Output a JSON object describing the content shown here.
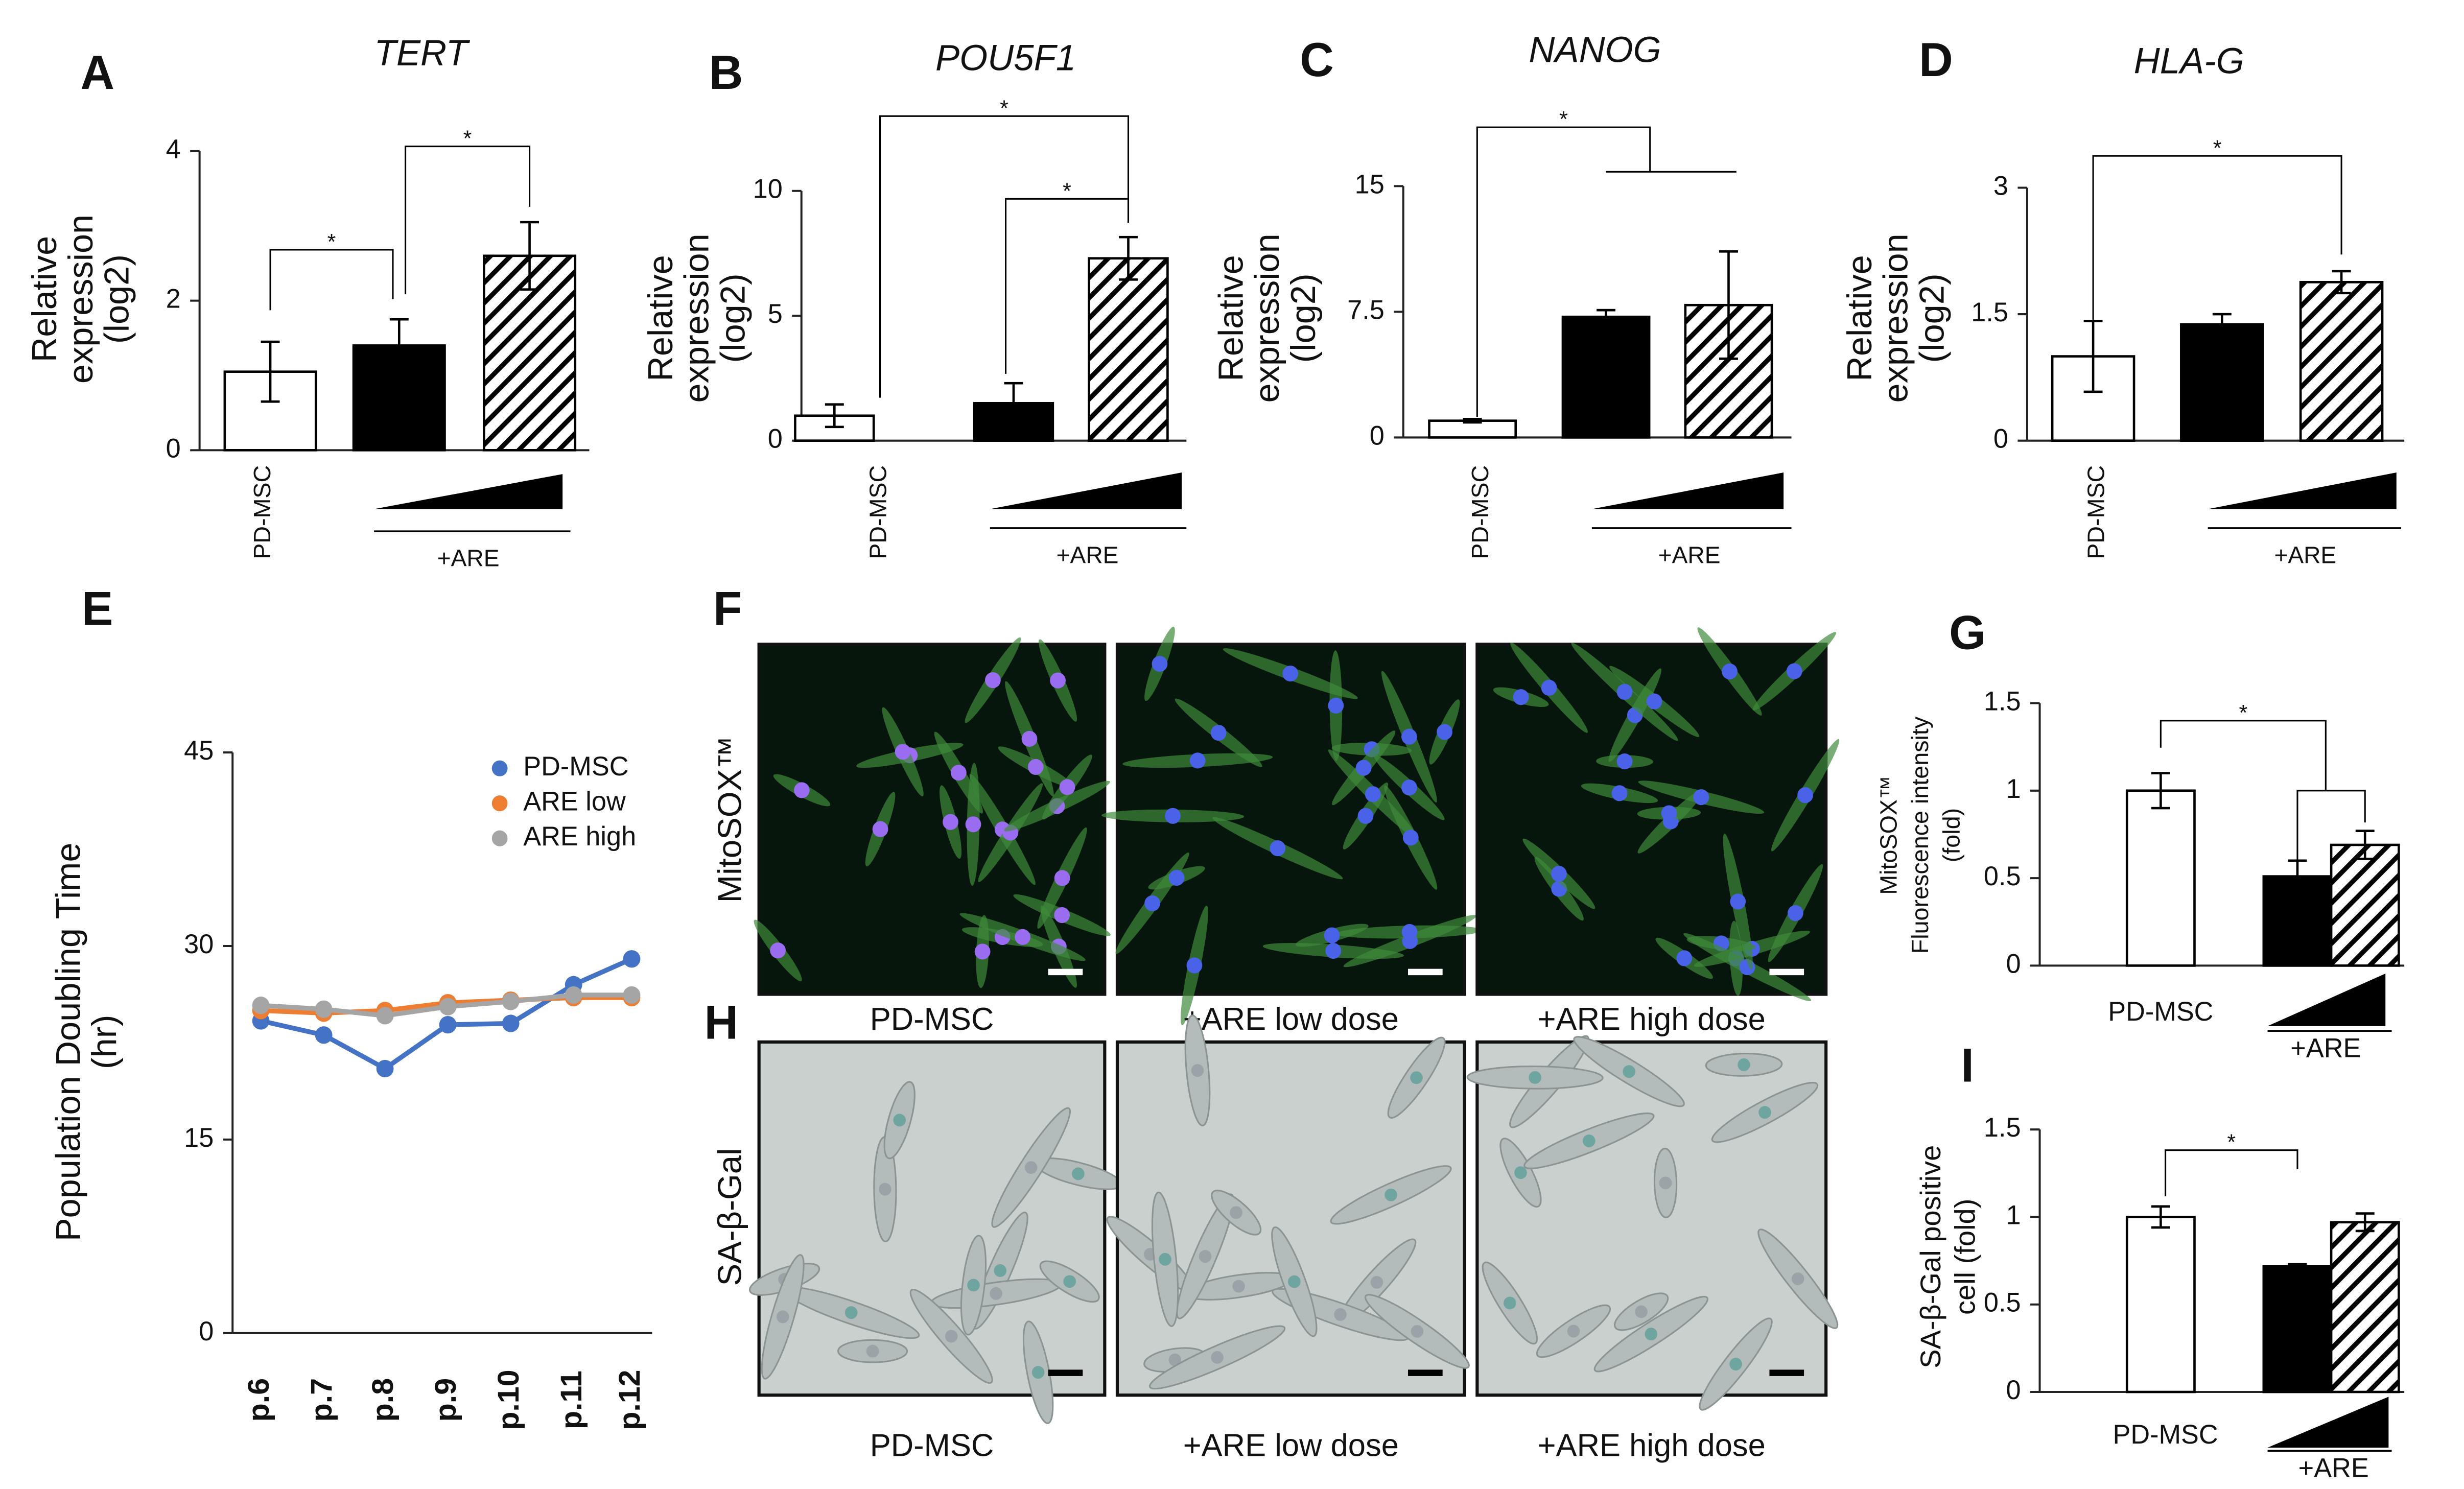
{
  "chart_data": [
    {
      "type": "bar",
      "panel": "A",
      "title": "TERT",
      "ylabel": [
        "Relative",
        "expression",
        "(log2)"
      ],
      "categories": [
        "PD-MSC",
        null,
        null
      ],
      "group_label": "+ARE",
      "values": [
        1.05,
        1.4,
        2.6
      ],
      "errors": [
        0.4,
        0.35,
        0.45
      ],
      "colors": [
        "#ffffff",
        "#000000",
        "#ffffff"
      ],
      "hatch": [
        false,
        false,
        true
      ],
      "ylim": [
        0,
        4
      ],
      "yticks": [
        0,
        2,
        4
      ],
      "annotations": [
        "*",
        "*"
      ]
    },
    {
      "type": "bar",
      "panel": "B",
      "title": "POU5F1",
      "ylabel": [
        "Relative",
        "expression",
        "(log2)"
      ],
      "categories": [
        "PD-MSC",
        null,
        null
      ],
      "group_label": "+ARE",
      "values": [
        1.0,
        1.5,
        7.3
      ],
      "errors": [
        0.45,
        0.8,
        0.85
      ],
      "colors": [
        "#ffffff",
        "#000000",
        "#ffffff"
      ],
      "hatch": [
        false,
        false,
        true
      ],
      "ylim": [
        0,
        10
      ],
      "yticks": [
        0,
        5,
        10
      ],
      "annotations": [
        "*",
        "*"
      ]
    },
    {
      "type": "bar",
      "panel": "C",
      "title": "NANOG",
      "ylabel": [
        "Relative",
        "expression",
        "(log2)"
      ],
      "categories": [
        "PD-MSC",
        null,
        null
      ],
      "group_label": "+ARE",
      "values": [
        1.0,
        7.2,
        7.9
      ],
      "errors": [
        0.1,
        0.4,
        3.2
      ],
      "colors": [
        "#ffffff",
        "#000000",
        "#ffffff"
      ],
      "hatch": [
        false,
        false,
        true
      ],
      "ylim": [
        0,
        15
      ],
      "yticks": [
        0,
        7.5,
        15
      ],
      "annotations": [
        "*"
      ]
    },
    {
      "type": "bar",
      "panel": "D",
      "title": "HLA-G",
      "ylabel": [
        "Relative",
        "expression",
        "(log2)"
      ],
      "categories": [
        "PD-MSC",
        null,
        null
      ],
      "group_label": "+ARE",
      "values": [
        1.0,
        1.38,
        1.88
      ],
      "errors": [
        0.42,
        0.12,
        0.13
      ],
      "colors": [
        "#ffffff",
        "#000000",
        "#ffffff"
      ],
      "hatch": [
        false,
        false,
        true
      ],
      "ylim": [
        0,
        3
      ],
      "yticks": [
        0,
        1.5,
        3
      ],
      "annotations": [
        "*"
      ]
    },
    {
      "type": "line",
      "panel": "E",
      "ylabel": [
        "Population Doubling Time",
        "(hr)"
      ],
      "categories": [
        "p.6",
        "p.7",
        "p.8",
        "p.9",
        "p.10",
        "p.11",
        "p.12"
      ],
      "series": [
        {
          "name": "PD-MSC",
          "color": "#4472c4",
          "values": [
            24.2,
            23.1,
            20.5,
            23.9,
            24.0,
            27.0,
            29.0
          ]
        },
        {
          "name": "ARE low",
          "color": "#ed7d31",
          "values": [
            25.0,
            24.8,
            25.0,
            25.6,
            25.8,
            26.0,
            26.0
          ]
        },
        {
          "name": "ARE high",
          "color": "#a5a5a5",
          "values": [
            25.4,
            25.1,
            24.6,
            25.3,
            25.7,
            26.2,
            26.2
          ]
        }
      ],
      "ylim": [
        0,
        45
      ],
      "yticks": [
        0,
        15,
        30,
        45
      ],
      "legend": "upper right"
    },
    {
      "type": "bar",
      "panel": "G",
      "ylabel": [
        "MitoSOX™",
        "Fluorescence intensity",
        "(fold)"
      ],
      "categories": [
        "PD-MSC",
        null,
        null
      ],
      "group_label": "+ARE",
      "values": [
        1.0,
        0.51,
        0.69
      ],
      "errors": [
        0.1,
        0.09,
        0.08
      ],
      "colors": [
        "#ffffff",
        "#000000",
        "#ffffff"
      ],
      "hatch": [
        false,
        false,
        true
      ],
      "ylim": [
        0,
        1.5
      ],
      "yticks": [
        0,
        0.5,
        1,
        1.5
      ],
      "annotations": [
        "*"
      ]
    },
    {
      "type": "bar",
      "panel": "I",
      "ylabel": [
        "SA-β-Gal positive",
        "cell (fold)"
      ],
      "categories": [
        "PD-MSC",
        null,
        null
      ],
      "group_label": "+ARE",
      "values": [
        1.0,
        0.72,
        0.97
      ],
      "errors": [
        0.06,
        0.01,
        0.05
      ],
      "colors": [
        "#ffffff",
        "#000000",
        "#ffffff"
      ],
      "hatch": [
        false,
        false,
        true
      ],
      "ylim": [
        0,
        1.5
      ],
      "yticks": [
        0,
        0.5,
        1,
        1.5
      ],
      "annotations": [
        "*"
      ]
    }
  ],
  "images": [
    {
      "panel": "F",
      "row_label": "MitoSOX™",
      "captions": [
        "PD-MSC",
        "+ARE low dose",
        "+ARE high dose"
      ]
    },
    {
      "panel": "H",
      "row_label": "SA-β-Gal",
      "captions": [
        "PD-MSC",
        "+ARE low dose",
        "+ARE high dose"
      ]
    }
  ]
}
